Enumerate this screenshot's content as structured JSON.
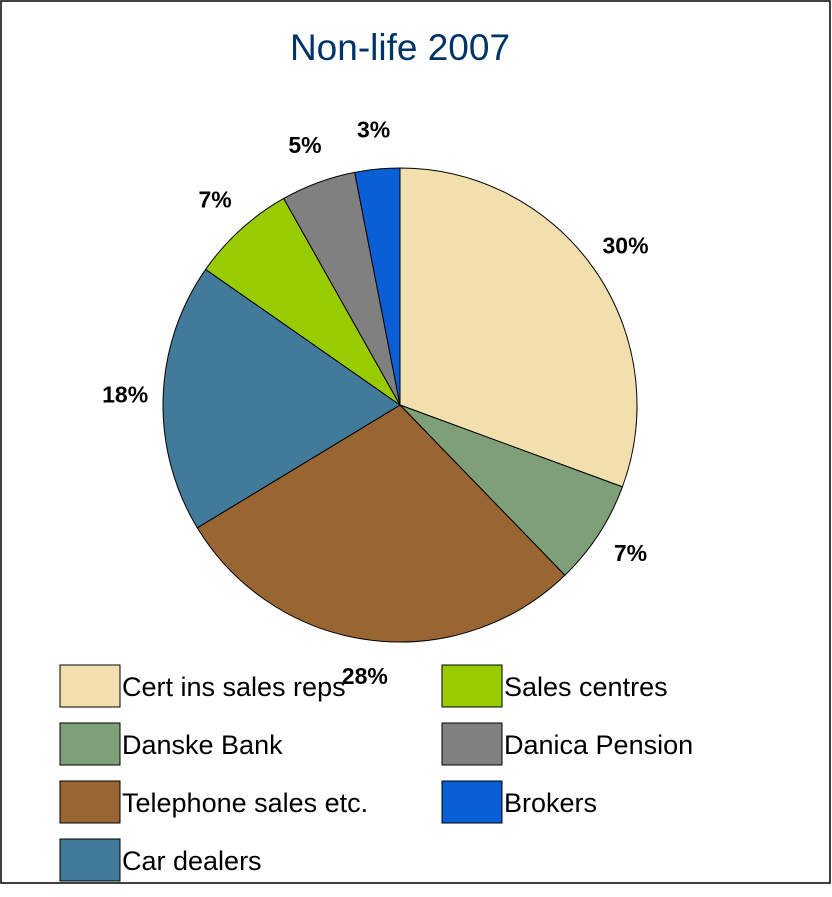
{
  "chart_data": {
    "type": "pie",
    "title": "Non-life 2007",
    "categories": [
      "Cert ins sales reps",
      "Danske Bank",
      "Telephone sales etc.",
      "Car dealers",
      "Sales centres",
      "Danica Pension",
      "Brokers"
    ],
    "values": [
      30,
      7,
      28,
      18,
      7,
      5,
      3
    ],
    "value_labels": [
      "30%",
      "7%",
      "28%",
      "18%",
      "7%",
      "5%",
      "3%"
    ],
    "colors": [
      "#f2dfae",
      "#7f9f78",
      "#996633",
      "#427a9a",
      "#99cc00",
      "#808080",
      "#0a5fd6"
    ],
    "legend": "bottom"
  }
}
